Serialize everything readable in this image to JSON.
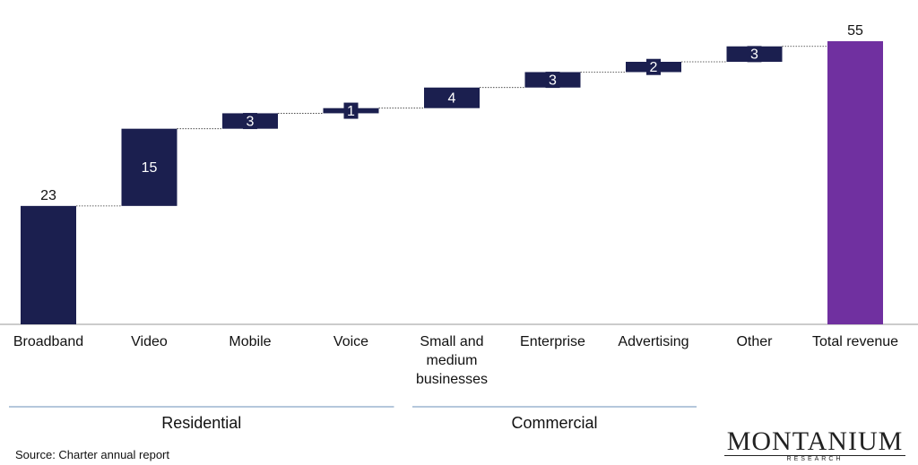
{
  "chart_data": {
    "type": "waterfall",
    "categories": [
      "Broadband",
      "Video",
      "Mobile",
      "Voice",
      "Small and medium businesses",
      "Enterprise",
      "Advertising",
      "Other",
      "Total revenue"
    ],
    "values": [
      23,
      15,
      3,
      1,
      4,
      3,
      2,
      3,
      55
    ],
    "color": "#1b1f4f",
    "total_color": "#7030a0",
    "groups": [
      {
        "label": "Residential",
        "span": [
          0,
          3
        ]
      },
      {
        "label": "Commercial",
        "span": [
          4,
          6
        ]
      }
    ],
    "source": "Source: Charter annual report",
    "logo": {
      "name": "MONTANIUM",
      "sub": "RESEARCH"
    }
  }
}
